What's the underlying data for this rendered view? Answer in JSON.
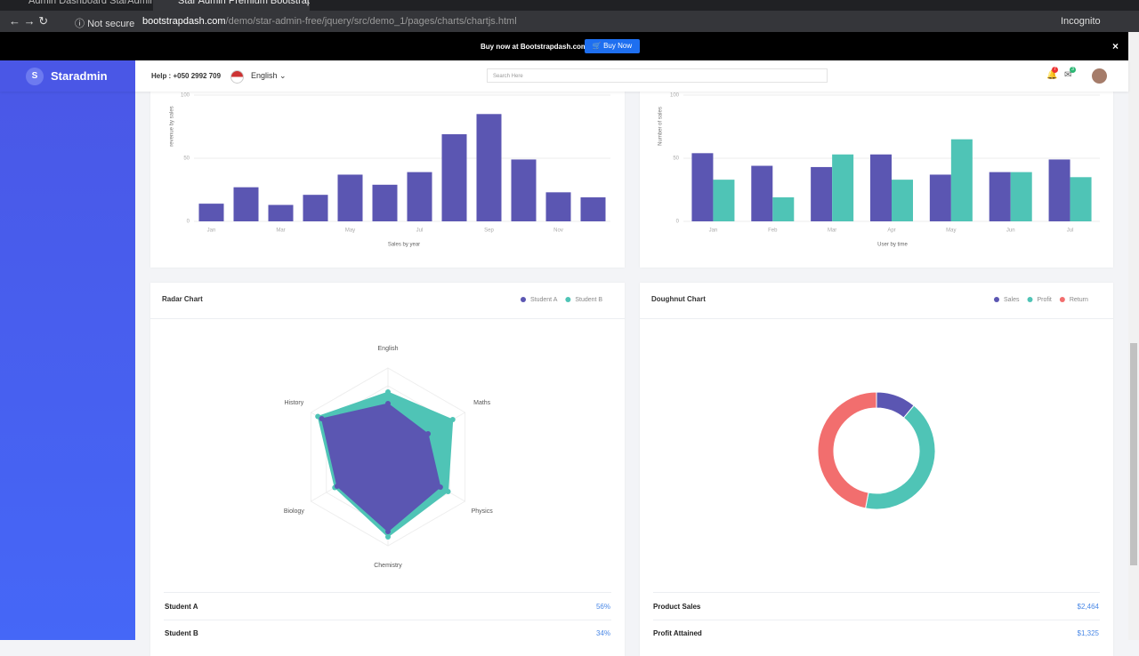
{
  "browser": {
    "tabs": [
      "Admin Dashboard StarAdmin | P",
      "Star Admin Premium Bootstrap A"
    ],
    "security": "Not secure",
    "url_host": "bootstrapdash.com",
    "url_path": "/demo/star-admin-free/jquery/src/demo_1/pages/charts/chartjs.html",
    "profile": "Incognito"
  },
  "banner": {
    "text": "Buy now at Bootstrapdash.com",
    "button": "Buy Now"
  },
  "navbar": {
    "logo_letter": "S",
    "brand": "Staradmin",
    "help": "Help : +050 2992 709",
    "language": "English",
    "search_placeholder": "Search Here",
    "notification_count": 7,
    "message_count": 3
  },
  "chart_data": [
    {
      "type": "bar",
      "y_label": "revenue by sales",
      "x_label": "Sales by year",
      "categories": [
        "Jan",
        null,
        "Mar",
        null,
        "May",
        null,
        "Jul",
        null,
        "Sep",
        null,
        "Nov",
        null
      ],
      "values": [
        14,
        27,
        13,
        21,
        37,
        29,
        39,
        69,
        85,
        49,
        23,
        19
      ],
      "color": "#5b56b2",
      "ylim": [
        0,
        100
      ],
      "yticks": [
        0,
        50,
        100
      ],
      "grid": true
    },
    {
      "type": "bar",
      "y_label": "Number of sales",
      "x_label": "User by time",
      "categories": [
        "Jan",
        "Feb",
        "Mar",
        "Apr",
        "May",
        "Jun",
        "Jul"
      ],
      "series": [
        {
          "color": "#5b56b2",
          "values": [
            54,
            44,
            43,
            53,
            37,
            39,
            49
          ]
        },
        {
          "color": "#4fc4b6",
          "values": [
            33,
            19,
            53,
            33,
            65,
            39,
            35
          ]
        }
      ],
      "ylim": [
        0,
        100
      ],
      "yticks": [
        0,
        50,
        100
      ],
      "grid": true
    },
    {
      "type": "radar",
      "title": "Radar Chart",
      "categories": [
        "English",
        "Maths",
        "Physics",
        "Chemistry",
        "Biology",
        "History"
      ],
      "series": [
        {
          "name": "Student A",
          "color": "#5b56b2",
          "values": [
            60,
            52,
            68,
            84,
            66,
            86
          ]
        },
        {
          "name": "Student B",
          "color": "#4fc4b6",
          "values": [
            73,
            84,
            78,
            90,
            69,
            91
          ]
        }
      ],
      "rlim": [
        0,
        100
      ]
    },
    {
      "type": "doughnut",
      "title": "Doughnut Chart",
      "categories": [
        "Sales",
        "Profit",
        "Return"
      ],
      "values": [
        11,
        42,
        47
      ],
      "colors": [
        "#5b56b2",
        "#4fc4b6",
        "#f26e6e"
      ]
    }
  ],
  "tables": [
    {
      "rows": [
        [
          "Student A",
          "56%"
        ],
        [
          "Student B",
          "34%"
        ]
      ]
    },
    {
      "rows": [
        [
          "Product Sales",
          "$2,464"
        ],
        [
          "Profit Attained",
          "$1,325"
        ]
      ]
    }
  ]
}
